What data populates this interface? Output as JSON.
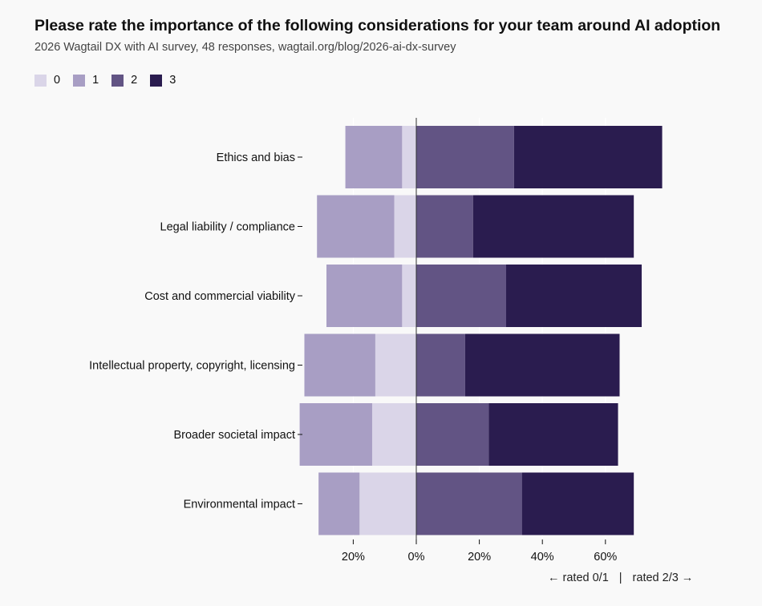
{
  "chart_data": {
    "type": "bar",
    "orientation": "horizontal-diverging",
    "title": "Please rate the importance of the following considerations for your team around AI adoption",
    "subtitle": "2026 Wagtail DX with AI survey, 48 responses, wagtail.org/blog/2026-ai-dx-survey",
    "categories": [
      "Ethics and bias",
      "Legal liability / compliance",
      "Cost and commercial viability",
      "Intellectual property, copyright, licensing",
      "Broader societal impact",
      "Environmental impact"
    ],
    "series": [
      {
        "name": "0",
        "color": "#dad5e8",
        "side": "negative",
        "values": [
          4.5,
          7,
          4.5,
          13,
          14,
          18
        ]
      },
      {
        "name": "1",
        "color": "#a89ec4",
        "side": "negative",
        "values": [
          18,
          24.5,
          24,
          22.5,
          23,
          13
        ]
      },
      {
        "name": "2",
        "color": "#625484",
        "side": "positive",
        "values": [
          31,
          18,
          28.5,
          15.5,
          23,
          33.5
        ]
      },
      {
        "name": "3",
        "color": "#2a1c4f",
        "side": "positive",
        "values": [
          47,
          51,
          43,
          49,
          41,
          35.5
        ]
      }
    ],
    "xlim": [
      -36,
      92
    ],
    "xticks": [
      -20,
      0,
      20,
      40,
      60
    ],
    "tick_labels": [
      "20%",
      "0%",
      "20%",
      "40%",
      "60%"
    ],
    "axis_note_left": "← rated 0/1",
    "axis_note_sep": "|",
    "axis_note_right": "rated 2/3 →",
    "grid": true,
    "legend_position": "top-left"
  }
}
